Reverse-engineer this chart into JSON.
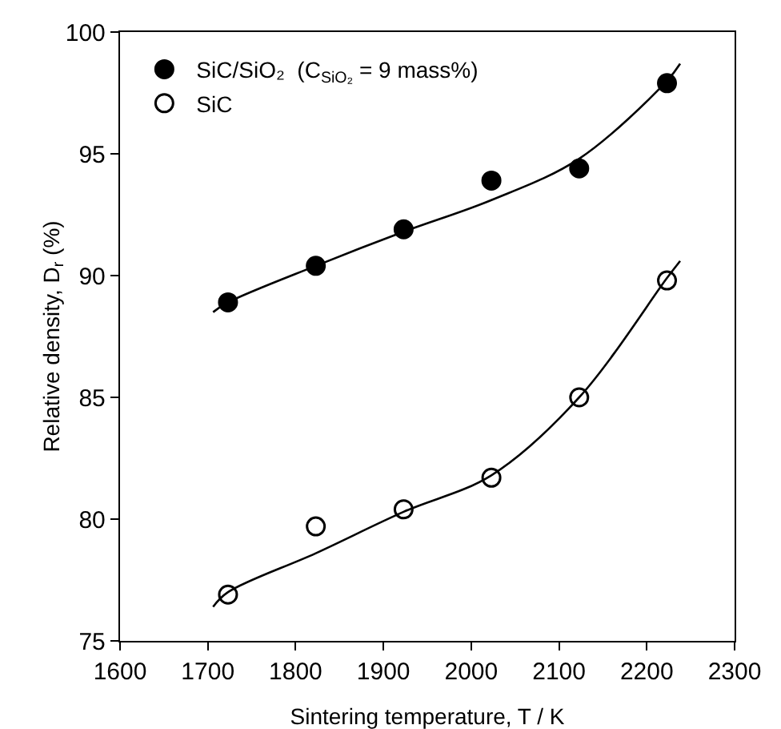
{
  "chart_data": {
    "type": "scatter",
    "xlabel": "Sintering temperature, T / K",
    "ylabel": "Relative density, D$_{r}$ (%)",
    "xlim": [
      1600,
      2300
    ],
    "xticks": [
      1600,
      1700,
      1800,
      1900,
      2000,
      2100,
      2200,
      2300
    ],
    "ylim": [
      75,
      100
    ],
    "yticks": [
      75,
      80,
      85,
      90,
      95,
      100
    ],
    "grid": false,
    "legend": "top left",
    "marker": "circle",
    "series": [
      {
        "name": "SiC/SiO₂  (C$_{SiO₂}$ = 9 mass%)",
        "color": "#000000",
        "x": [
          1723,
          1823,
          1923,
          2023,
          2123,
          2223
        ],
        "values": [
          88.9,
          90.4,
          91.9,
          93.9,
          94.4,
          97.9
        ]
      },
      {
        "name": "SiC",
        "color": "#ffffff",
        "x": [
          1723,
          1823,
          1923,
          2023,
          2123,
          2223
        ],
        "values": [
          76.9,
          79.7,
          80.4,
          81.7,
          85.0,
          89.8
        ]
      },
      {
        "type": "line",
        "color": "#000000",
        "marker": "none",
        "line_style": "solid",
        "x": [
          1706,
          1723,
          1823,
          1923,
          2023,
          2123,
          2223,
          2238
        ],
        "values": [
          88.5,
          88.9,
          90.4,
          91.8,
          93.1,
          94.8,
          98.0,
          98.7
        ]
      },
      {
        "type": "line",
        "color": "#000000",
        "marker": "none",
        "line_style": "solid",
        "x": [
          1706,
          1723,
          1823,
          1923,
          2023,
          2123,
          2223,
          2238
        ],
        "values": [
          76.4,
          77.0,
          78.6,
          80.3,
          81.8,
          85.0,
          89.9,
          90.6
        ]
      }
    ]
  }
}
